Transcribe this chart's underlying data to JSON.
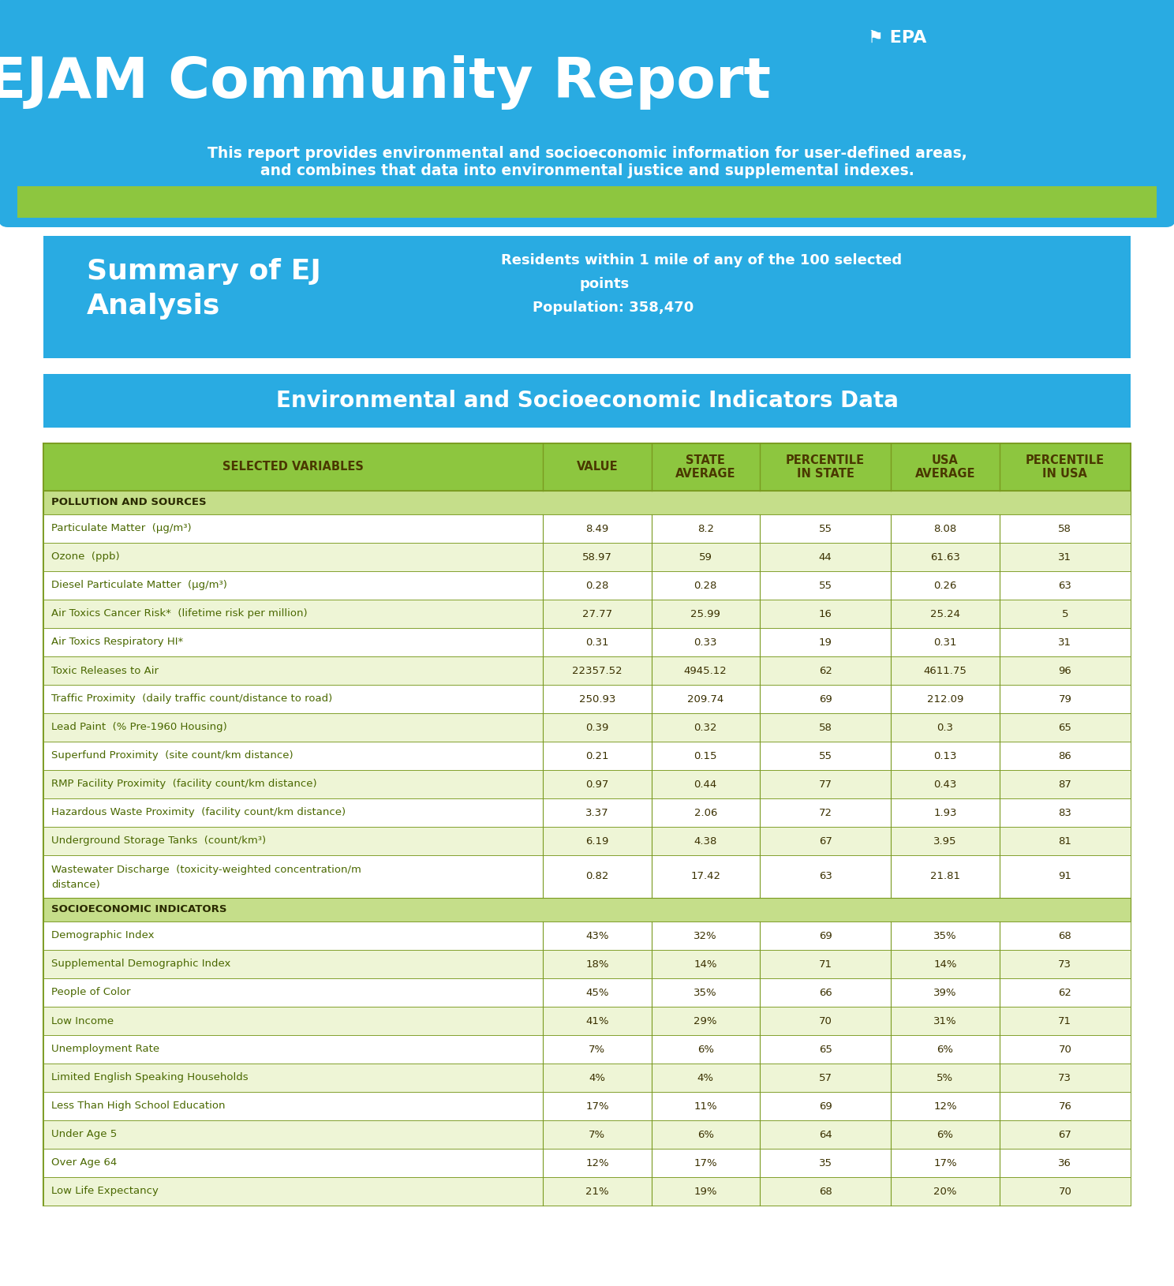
{
  "header_bg": "#29ABE2",
  "header_title": "EJAM Community Report",
  "header_subtitle": "This report provides environmental and socioeconomic information for user-defined areas,\nand combines that data into environmental justice and supplemental indexes.",
  "summary_bg": "#29ABE2",
  "summary_title_line1": "Summary of EJ",
  "summary_title_line2": "Analysis",
  "summary_right_line1": "Residents within 1 mile of any of the 100 selected",
  "summary_right_line2": "points",
  "summary_right_line3": "Population: 358,470",
  "section_bg": "#29ABE2",
  "section_title": "Environmental and Socioeconomic Indicators Data",
  "table_header_bg": "#8DC63F",
  "table_header_color": "#4a3800",
  "col_headers": [
    "SELECTED VARIABLES",
    "VALUE",
    "STATE\nAVERAGE",
    "PERCENTILE\nIN STATE",
    "USA\nAVERAGE",
    "PERCENTILE\nIN USA"
  ],
  "section1_label": "POLLUTION AND SOURCES",
  "section2_label": "SOCIOECONOMIC INDICATORS",
  "rows": [
    {
      "name": "Particulate Matter  (μg/m³)",
      "value": "8.49",
      "state_avg": "8.2",
      "pct_state": "55",
      "usa_avg": "8.08",
      "pct_usa": "58",
      "shade": false,
      "section": 1
    },
    {
      "name": "Ozone  (ppb)",
      "value": "58.97",
      "state_avg": "59",
      "pct_state": "44",
      "usa_avg": "61.63",
      "pct_usa": "31",
      "shade": true,
      "section": 1
    },
    {
      "name": "Diesel Particulate Matter  (μg/m³)",
      "value": "0.28",
      "state_avg": "0.28",
      "pct_state": "55",
      "usa_avg": "0.26",
      "pct_usa": "63",
      "shade": false,
      "section": 1
    },
    {
      "name": "Air Toxics Cancer Risk*  (lifetime risk per million)",
      "value": "27.77",
      "state_avg": "25.99",
      "pct_state": "16",
      "usa_avg": "25.24",
      "pct_usa": "5",
      "shade": true,
      "section": 1
    },
    {
      "name": "Air Toxics Respiratory HI*",
      "value": "0.31",
      "state_avg": "0.33",
      "pct_state": "19",
      "usa_avg": "0.31",
      "pct_usa": "31",
      "shade": false,
      "section": 1
    },
    {
      "name": "Toxic Releases to Air",
      "value": "22357.52",
      "state_avg": "4945.12",
      "pct_state": "62",
      "usa_avg": "4611.75",
      "pct_usa": "96",
      "shade": true,
      "section": 1
    },
    {
      "name": "Traffic Proximity  (daily traffic count/distance to road)",
      "value": "250.93",
      "state_avg": "209.74",
      "pct_state": "69",
      "usa_avg": "212.09",
      "pct_usa": "79",
      "shade": false,
      "section": 1
    },
    {
      "name": "Lead Paint  (% Pre-1960 Housing)",
      "value": "0.39",
      "state_avg": "0.32",
      "pct_state": "58",
      "usa_avg": "0.3",
      "pct_usa": "65",
      "shade": true,
      "section": 1
    },
    {
      "name": "Superfund Proximity  (site count/km distance)",
      "value": "0.21",
      "state_avg": "0.15",
      "pct_state": "55",
      "usa_avg": "0.13",
      "pct_usa": "86",
      "shade": false,
      "section": 1
    },
    {
      "name": "RMP Facility Proximity  (facility count/km distance)",
      "value": "0.97",
      "state_avg": "0.44",
      "pct_state": "77",
      "usa_avg": "0.43",
      "pct_usa": "87",
      "shade": true,
      "section": 1
    },
    {
      "name": "Hazardous Waste Proximity  (facility count/km distance)",
      "value": "3.37",
      "state_avg": "2.06",
      "pct_state": "72",
      "usa_avg": "1.93",
      "pct_usa": "83",
      "shade": false,
      "section": 1
    },
    {
      "name": "Underground Storage Tanks  (count/km³)",
      "value": "6.19",
      "state_avg": "4.38",
      "pct_state": "67",
      "usa_avg": "3.95",
      "pct_usa": "81",
      "shade": true,
      "section": 1
    },
    {
      "name": "Wastewater Discharge  (toxicity-weighted concentration/m\ndistance)",
      "value": "0.82",
      "state_avg": "17.42",
      "pct_state": "63",
      "usa_avg": "21.81",
      "pct_usa": "91",
      "shade": false,
      "section": 1
    },
    {
      "name": "Demographic Index",
      "value": "43%",
      "state_avg": "32%",
      "pct_state": "69",
      "usa_avg": "35%",
      "pct_usa": "68",
      "shade": false,
      "section": 2
    },
    {
      "name": "Supplemental Demographic Index",
      "value": "18%",
      "state_avg": "14%",
      "pct_state": "71",
      "usa_avg": "14%",
      "pct_usa": "73",
      "shade": true,
      "section": 2
    },
    {
      "name": "People of Color",
      "value": "45%",
      "state_avg": "35%",
      "pct_state": "66",
      "usa_avg": "39%",
      "pct_usa": "62",
      "shade": false,
      "section": 2
    },
    {
      "name": "Low Income",
      "value": "41%",
      "state_avg": "29%",
      "pct_state": "70",
      "usa_avg": "31%",
      "pct_usa": "71",
      "shade": true,
      "section": 2
    },
    {
      "name": "Unemployment Rate",
      "value": "7%",
      "state_avg": "6%",
      "pct_state": "65",
      "usa_avg": "6%",
      "pct_usa": "70",
      "shade": false,
      "section": 2
    },
    {
      "name": "Limited English Speaking Households",
      "value": "4%",
      "state_avg": "4%",
      "pct_state": "57",
      "usa_avg": "5%",
      "pct_usa": "73",
      "shade": true,
      "section": 2
    },
    {
      "name": "Less Than High School Education",
      "value": "17%",
      "state_avg": "11%",
      "pct_state": "69",
      "usa_avg": "12%",
      "pct_usa": "76",
      "shade": false,
      "section": 2
    },
    {
      "name": "Under Age 5",
      "value": "7%",
      "state_avg": "6%",
      "pct_state": "64",
      "usa_avg": "6%",
      "pct_usa": "67",
      "shade": true,
      "section": 2
    },
    {
      "name": "Over Age 64",
      "value": "12%",
      "state_avg": "17%",
      "pct_state": "35",
      "usa_avg": "17%",
      "pct_usa": "36",
      "shade": false,
      "section": 2
    },
    {
      "name": "Low Life Expectancy",
      "value": "21%",
      "state_avg": "19%",
      "pct_state": "68",
      "usa_avg": "20%",
      "pct_usa": "70",
      "shade": true,
      "section": 2
    }
  ],
  "row_bg_light": "#eef5d6",
  "row_bg_white": "#ffffff",
  "section_row_bg": "#c5de8a",
  "border_color": "#7a9a20",
  "text_color_dark": "#3a3000",
  "text_color_green": "#4a6800",
  "green_accent": "#8DC63F",
  "page_bg": "#ffffff"
}
